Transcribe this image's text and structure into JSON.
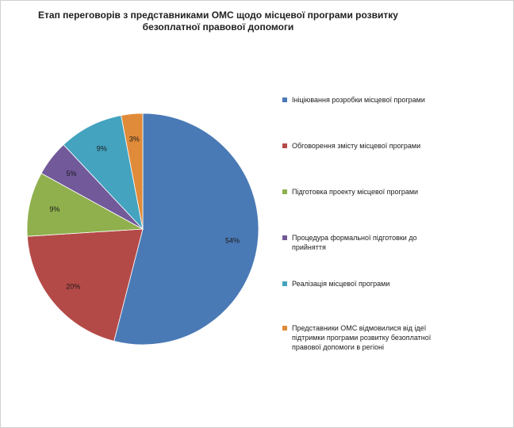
{
  "chart_data": {
    "type": "pie",
    "title_lines": [
      "Етап переговорів з представниками ОМС щодо місцевої програми розвитку",
      "безоплатної правової допомоги"
    ],
    "legend_position": "right",
    "slices": [
      {
        "name": "Ініціювання розробки місцевої програми",
        "value": 54,
        "label": "54%",
        "color": "#4a7ab5"
      },
      {
        "name": "Обговорення змісту місцевої програми",
        "value": 20,
        "label": "20%",
        "color": "#b44a47"
      },
      {
        "name": "Підготовка проекту місцевої програми",
        "value": 9,
        "label": "9%",
        "color": "#8fb04d"
      },
      {
        "name": "Процедура формальної підготовки до прийняття",
        "value": 5,
        "label": "5%",
        "color": "#72599a"
      },
      {
        "name": "Реалізація місцевої програми",
        "value": 9,
        "label": "9%",
        "color": "#44a3bf"
      },
      {
        "name": "Представники ОМС відмовилися від ідеї підтримки програми розвитку безоплатної правової допомоги в регіоні",
        "value": 3,
        "label": "3%",
        "color": "#e08b3a"
      }
    ]
  }
}
